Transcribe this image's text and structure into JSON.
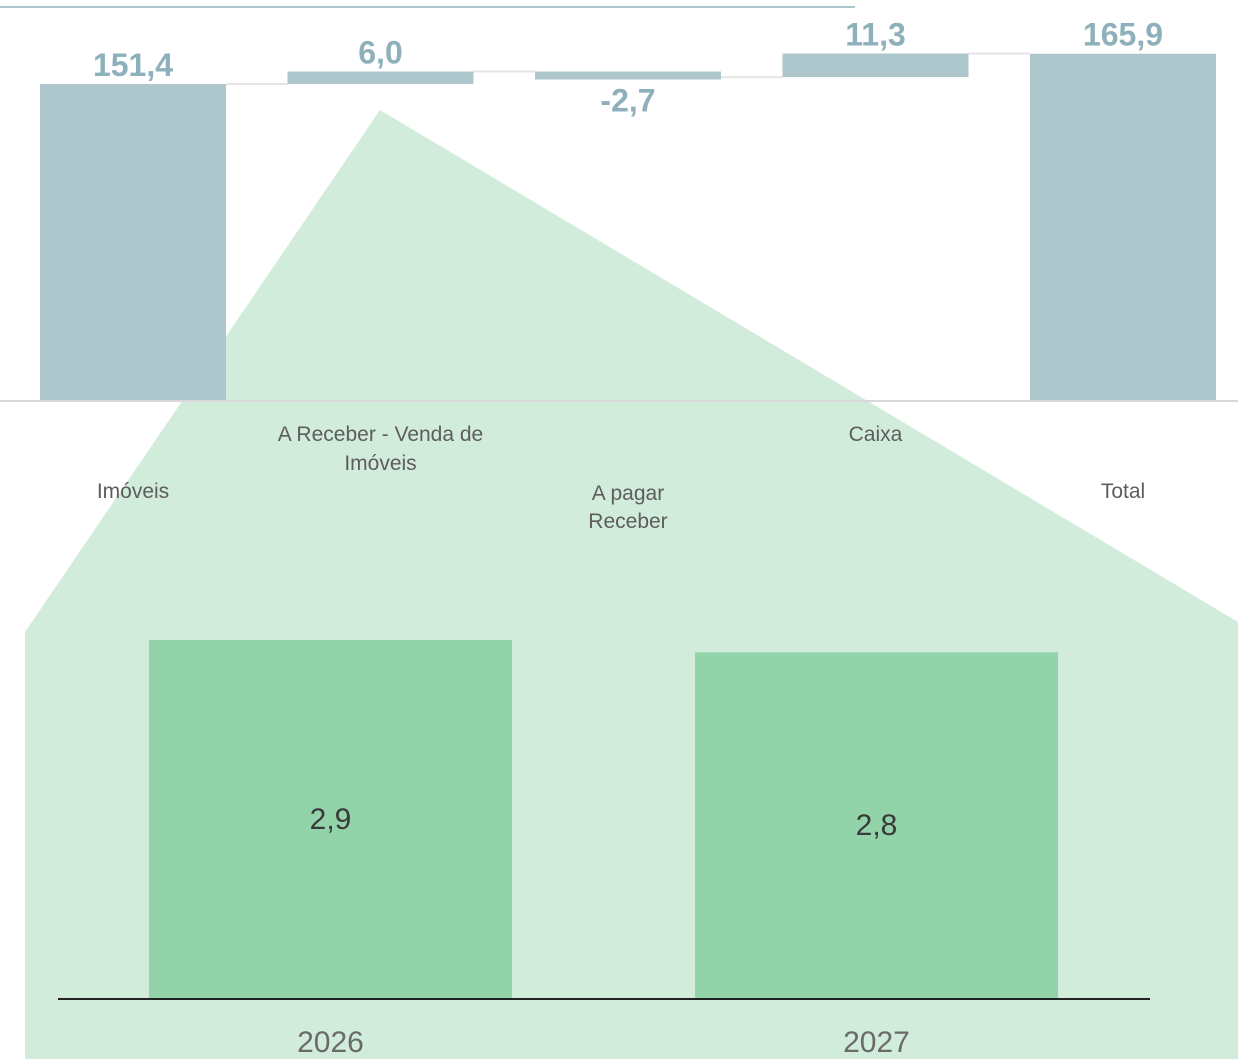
{
  "colors": {
    "waterfall_bar": "#aec7cd",
    "waterfall_value": "#8eb0bb",
    "callout_fill": "#d2ecdc",
    "sub_bar": "#93d3aa",
    "axis_line": "#222222",
    "top_rule": "#aec7cd"
  },
  "chart_data": [
    {
      "type": "bar",
      "subtype": "waterfall",
      "categories": [
        [
          "Imóveis"
        ],
        [
          "A Receber - Venda de",
          "Imóveis"
        ],
        [
          "A pagar",
          "Receber"
        ],
        [
          "Caixa"
        ],
        [
          "Total"
        ]
      ],
      "values": [
        151.4,
        6.0,
        -2.7,
        11.3,
        165.9
      ],
      "value_labels": [
        "151,4",
        "6,0",
        "-2,7",
        "11,3",
        "165,9"
      ],
      "kinds": [
        "total",
        "delta",
        "delta",
        "delta",
        "total"
      ],
      "ylim": [
        0,
        170
      ],
      "grid": false
    },
    {
      "type": "bar",
      "categories": [
        "2026",
        "2027"
      ],
      "values": [
        2.9,
        2.8
      ],
      "value_labels": [
        "2,9",
        "2,8"
      ],
      "ylim": [
        0,
        3.6
      ],
      "grid": false
    }
  ]
}
